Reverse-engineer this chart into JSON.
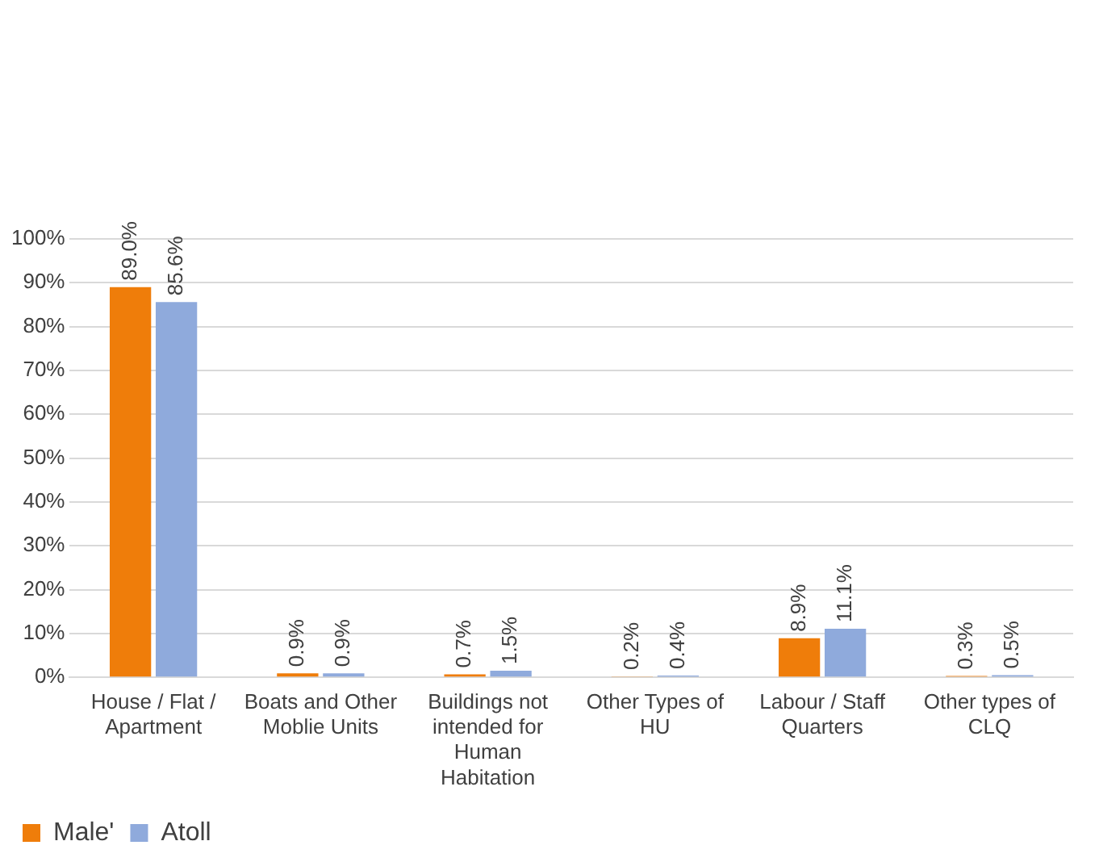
{
  "chart_data": {
    "type": "bar",
    "categories": [
      "House / Flat / Apartment",
      "Boats and Other Moblie Units",
      "Buildings not intended for Human Habitation",
      "Other Types of HU",
      "Labour / Staff Quarters",
      "Other types of CLQ"
    ],
    "series": [
      {
        "name": "Male'",
        "color": "#ef7d0a",
        "values": [
          89.0,
          0.9,
          0.7,
          0.2,
          8.9,
          0.3
        ],
        "value_labels": [
          "89.0%",
          "0.9%",
          "0.7%",
          "0.2%",
          "8.9%",
          "0.3%"
        ]
      },
      {
        "name": "Atoll",
        "color": "#8faadc",
        "values": [
          85.6,
          0.9,
          1.5,
          0.4,
          11.1,
          0.5
        ],
        "value_labels": [
          "85.6%",
          "0.9%",
          "1.5%",
          "0.4%",
          "11.1%",
          "0.5%"
        ]
      }
    ],
    "ylim": [
      0,
      100
    ],
    "yticks": [
      {
        "value": 0,
        "label": "0%"
      },
      {
        "value": 10,
        "label": "10%"
      },
      {
        "value": 20,
        "label": "20%"
      },
      {
        "value": 30,
        "label": "30%"
      },
      {
        "value": 40,
        "label": "40%"
      },
      {
        "value": 50,
        "label": "50%"
      },
      {
        "value": 60,
        "label": "60%"
      },
      {
        "value": 70,
        "label": "70%"
      },
      {
        "value": 80,
        "label": "80%"
      },
      {
        "value": 90,
        "label": "90%"
      },
      {
        "value": 100,
        "label": "100%"
      }
    ],
    "grid": "y",
    "legend": "bottom left"
  }
}
